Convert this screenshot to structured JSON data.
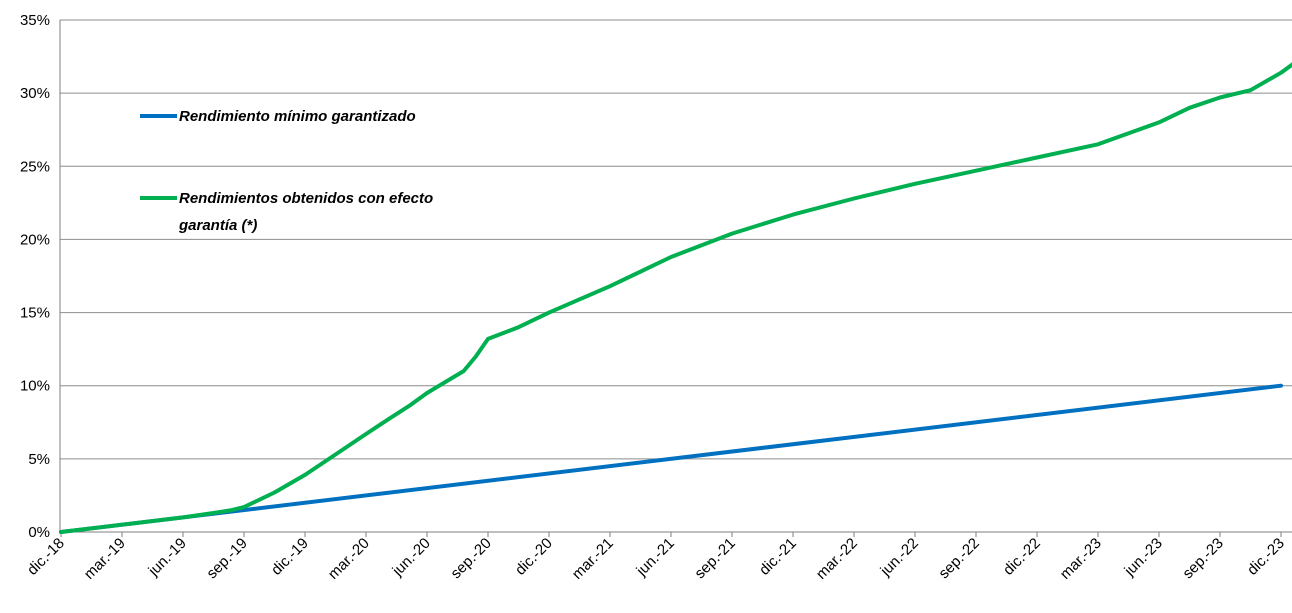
{
  "chart_data": {
    "type": "line",
    "title": "",
    "xlabel": "",
    "ylabel": "",
    "categories": [
      "dic.-18",
      "mar.-19",
      "jun.-19",
      "sep.-19",
      "dic.-19",
      "mar.-20",
      "jun.-20",
      "sep.-20",
      "dic.-20",
      "mar.-21",
      "jun.-21",
      "sep.-21",
      "dic.-21",
      "mar.-22",
      "jun.-22",
      "sep.-22",
      "dic.-22",
      "mar.-23",
      "jun.-23",
      "sep.-23",
      "dic.-23"
    ],
    "ylim": [
      0,
      35
    ],
    "yticks": [
      0,
      5,
      10,
      15,
      20,
      25,
      30,
      35
    ],
    "ytick_labels": [
      "0%",
      "5%",
      "10%",
      "15%",
      "20%",
      "25%",
      "30%",
      "35%"
    ],
    "grid": "horizontal",
    "legend_position": "top-left",
    "series": [
      {
        "name": "Rendimiento mínimo garantizado",
        "color": "#0070C0",
        "x": [
          0,
          20
        ],
        "y": [
          0,
          10
        ]
      },
      {
        "name_lines": [
          "Rendimientos obtenidos con efecto",
          "garantía (*)"
        ],
        "color": "#00B050",
        "x": [
          0,
          1,
          2,
          2.5,
          2.8,
          3,
          3.5,
          4,
          4.5,
          5,
          5.4,
          5.7,
          6,
          6.4,
          6.6,
          6.8,
          7,
          7.5,
          8,
          9,
          10,
          11,
          12,
          13,
          14,
          15,
          16,
          17,
          18,
          18.5,
          19,
          19.5,
          20,
          20.2
        ],
        "y": [
          0,
          0.5,
          1.0,
          1.3,
          1.5,
          1.7,
          2.7,
          3.9,
          5.3,
          6.7,
          7.8,
          8.6,
          9.5,
          10.5,
          11.0,
          12.0,
          13.2,
          14.0,
          15.0,
          16.8,
          18.8,
          20.4,
          21.7,
          22.8,
          23.8,
          24.7,
          25.6,
          26.5,
          28.0,
          29.0,
          29.7,
          30.2,
          31.4,
          32.0
        ]
      }
    ]
  }
}
